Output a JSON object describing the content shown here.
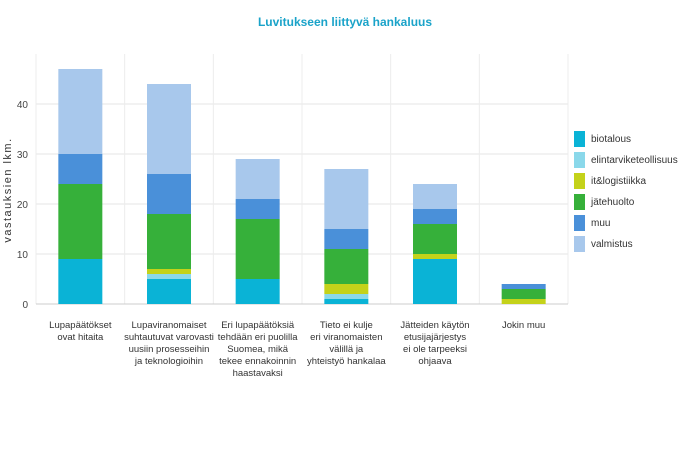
{
  "chart_data": {
    "type": "bar",
    "stacked": true,
    "title": "Luvitukseen liittyvä hankaluus",
    "xlabel": "",
    "ylabel": "vastauksien lkm.",
    "ylim": [
      0,
      50
    ],
    "yticks": [
      0,
      10,
      20,
      30,
      40
    ],
    "grid": true,
    "legend_position": "right",
    "title_color": "#1aa3c9",
    "categories": [
      [
        "Lupapäätökset",
        "ovat hitaita"
      ],
      [
        "Lupaviranomaiset",
        "suhtautuvat varovasti",
        "uusiin prosesseihin",
        "ja teknologioihin"
      ],
      [
        "Eri lupapäätöksiä",
        "tehdään eri puolilla",
        "Suomea, mikä",
        "tekee ennakoinnin",
        "haastavaksi"
      ],
      [
        "Tieto ei kulje",
        "eri viranomaisten",
        "välillä ja",
        "yhteistyö hankalaa"
      ],
      [
        "Jätteiden käytön",
        "etusijajärjestys",
        "ei ole tarpeeksi",
        "ohjaava"
      ],
      [
        "Jokin muu"
      ]
    ],
    "series": [
      {
        "name": "biotalous",
        "color": "#0ab3d6",
        "values": [
          9,
          5,
          5,
          1,
          9,
          0
        ]
      },
      {
        "name": "elintarviketeollisuus",
        "color": "#8ad8ea",
        "values": [
          0,
          1,
          0,
          1,
          0,
          0
        ]
      },
      {
        "name": "it&logistiikka",
        "color": "#c4d21a",
        "values": [
          0,
          1,
          0,
          2,
          1,
          1
        ]
      },
      {
        "name": "jätehuolto",
        "color": "#36b03a",
        "values": [
          15,
          11,
          12,
          7,
          6,
          2
        ]
      },
      {
        "name": "muu",
        "color": "#4a90d9",
        "values": [
          6,
          8,
          4,
          4,
          3,
          1
        ]
      },
      {
        "name": "valmistus",
        "color": "#a8c8ec",
        "values": [
          17,
          18,
          8,
          12,
          5,
          0
        ]
      }
    ]
  }
}
